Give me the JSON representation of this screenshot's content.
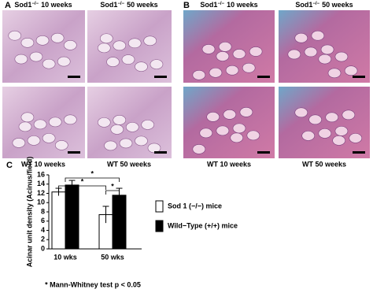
{
  "panel_a": {
    "label": "A",
    "top": [
      {
        "gene": "Sod1",
        "superscript": "−/−",
        "time": "10 weeks"
      },
      {
        "gene": "Sod1",
        "superscript": "−/−",
        "time": "50 weeks"
      }
    ],
    "bottom": [
      "WT 10 weeks",
      "WT 50 weeks"
    ]
  },
  "panel_b": {
    "label": "B",
    "top": [
      {
        "gene": "Sod1",
        "superscript": "−/−",
        "time": "10 weeks"
      },
      {
        "gene": "Sod1",
        "superscript": "−/−",
        "time": "50 weeks"
      }
    ],
    "bottom": [
      "WT 10 weeks",
      "WT 50 weeks"
    ]
  },
  "chart_data": {
    "type": "bar",
    "label": "C",
    "y_label": "Acinar unit density (Acinus/field)",
    "categories": [
      "10 wks",
      "50 wks"
    ],
    "series": [
      {
        "name": "Sod 1 (−/−) mice",
        "color": "#ffffff",
        "values": [
          12.3,
          7.4
        ],
        "errors": [
          0.8,
          1.8
        ]
      },
      {
        "name": "Wild−Type (+/+) mice",
        "color": "#000000",
        "values": [
          13.8,
          11.6
        ],
        "errors": [
          1.0,
          1.5
        ]
      }
    ],
    "ylim": [
      0,
      16
    ],
    "yticks": [
      0,
      2,
      4,
      6,
      8,
      10,
      12,
      14,
      16
    ],
    "significance": [
      "*",
      "*",
      "*"
    ],
    "footnote": "* Mann-Whitney test p < 0.05"
  }
}
